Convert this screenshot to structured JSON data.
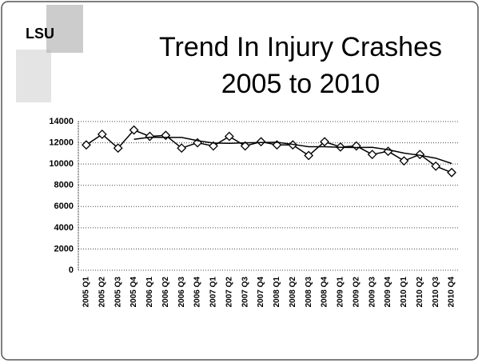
{
  "logo": "LSU",
  "chart_data": {
    "type": "line",
    "title_lines": [
      "Trend In Injury Crashes",
      "2005 to 2010"
    ],
    "categories": [
      "2005 Q1",
      "2005 Q2",
      "2005 Q3",
      "2005 Q4",
      "2006 Q1",
      "2006 Q2",
      "2006 Q3",
      "2006 Q4",
      "2007 Q1",
      "2007 Q2",
      "2007 Q3",
      "2007 Q4",
      "2008 Q1",
      "2008 Q2",
      "2008 Q3",
      "2008 Q4",
      "2009 Q1",
      "2009 Q2",
      "2009 Q3",
      "2009 Q4",
      "2010 Q1",
      "2010 Q2",
      "2010 Q3",
      "2010 Q4"
    ],
    "series": [
      {
        "color": "#000000",
        "marker": "diamond",
        "values": [
          11800,
          12800,
          11500,
          13200,
          12600,
          12700,
          11500,
          12000,
          11700,
          12600,
          11700,
          12100,
          11800,
          11800,
          10800,
          12100,
          11600,
          11700,
          10900,
          11200,
          10300,
          10900,
          9800,
          9200
        ]
      },
      {
        "color": "#000000",
        "marker": "none",
        "values": [
          null,
          null,
          null,
          12325,
          12525,
          12500,
          12500,
          12200,
          11975,
          11950,
          12000,
          12025,
          12050,
          11850,
          11625,
          11625,
          11575,
          11550,
          11575,
          11350,
          11025,
          10825,
          10550,
          10050
        ]
      }
    ],
    "ylim": [
      0,
      14000
    ],
    "yticks": [
      0,
      2000,
      4000,
      6000,
      8000,
      10000,
      12000,
      14000
    ],
    "grid": true
  }
}
